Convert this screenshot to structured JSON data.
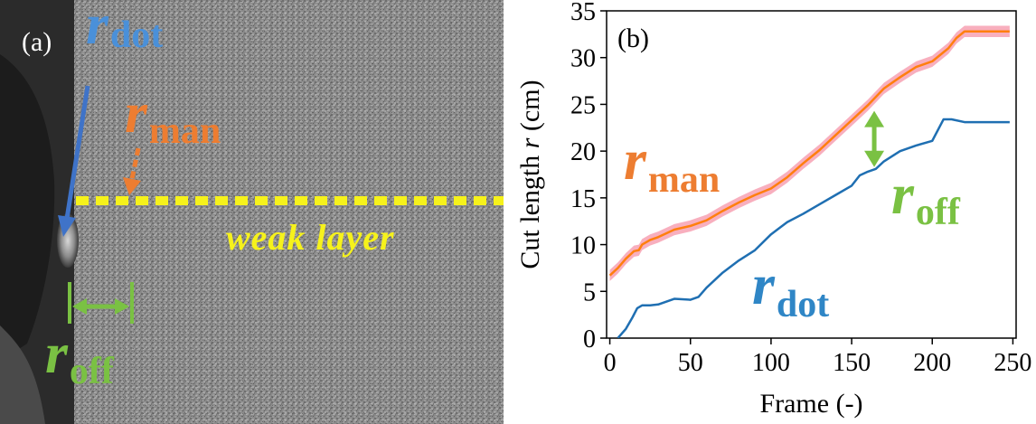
{
  "panel_a": {
    "label": "(a)",
    "r_dot": {
      "main": "r",
      "sub": "dot"
    },
    "r_man": {
      "main": "r",
      "sub": "man"
    },
    "r_off": {
      "main": "r",
      "sub": "off"
    },
    "layer_text": "weak layer"
  },
  "panel_b": {
    "label": "(b)",
    "r_man": {
      "main": "r",
      "sub": "man"
    },
    "r_off": {
      "main": "r",
      "sub": "off"
    },
    "r_dot": {
      "main": "r",
      "sub": "dot"
    }
  },
  "colors": {
    "dot": "#4a90d9",
    "man": "#ed7d31",
    "off": "#7ac143",
    "layer": "#f6f21b",
    "blue_series": "#1f6fb2",
    "orange_series": "#ff7f0e",
    "band": "#f7a1b3"
  },
  "chart_data": {
    "type": "line",
    "title": "",
    "xlabel": "Frame (-)",
    "ylabel_prefix": "Cut length ",
    "ylabel_var": "r",
    "ylabel_suffix": " (cm)",
    "xlim": [
      -2,
      252
    ],
    "ylim": [
      0,
      35
    ],
    "xticks": [
      0,
      50,
      100,
      150,
      200,
      250
    ],
    "yticks": [
      0,
      5,
      10,
      15,
      20,
      25,
      30,
      35
    ],
    "grid": false,
    "series": [
      {
        "key": "man",
        "x": [
          0,
          5,
          10,
          15,
          18,
          20,
          25,
          30,
          40,
          50,
          60,
          70,
          80,
          90,
          100,
          110,
          120,
          130,
          140,
          150,
          160,
          170,
          180,
          190,
          200,
          210,
          215,
          220,
          230,
          240,
          248
        ],
        "y": [
          6.7,
          7.5,
          8.5,
          9.3,
          9.4,
          10.0,
          10.5,
          10.8,
          11.6,
          12.0,
          12.6,
          13.6,
          14.5,
          15.3,
          16.0,
          17.2,
          18.7,
          20.1,
          21.7,
          23.3,
          24.9,
          26.7,
          27.9,
          29.0,
          29.6,
          31.0,
          32.1,
          32.8,
          32.8,
          32.8,
          32.8
        ],
        "band": 0.6
      },
      {
        "key": "dot",
        "x": [
          5,
          10,
          14,
          17,
          20,
          25,
          30,
          35,
          40,
          50,
          55,
          60,
          70,
          80,
          90,
          100,
          110,
          120,
          130,
          140,
          150,
          155,
          160,
          165,
          170,
          180,
          190,
          200,
          207,
          212,
          220,
          230,
          240,
          248
        ],
        "y": [
          0,
          1.0,
          2.2,
          3.2,
          3.5,
          3.5,
          3.6,
          3.9,
          4.2,
          4.1,
          4.4,
          5.4,
          7.0,
          8.3,
          9.4,
          11.1,
          12.4,
          13.3,
          14.3,
          15.3,
          16.3,
          17.4,
          17.8,
          18.1,
          18.9,
          20.0,
          20.6,
          21.1,
          23.4,
          23.4,
          23.1,
          23.1,
          23.1,
          23.1
        ]
      }
    ]
  }
}
